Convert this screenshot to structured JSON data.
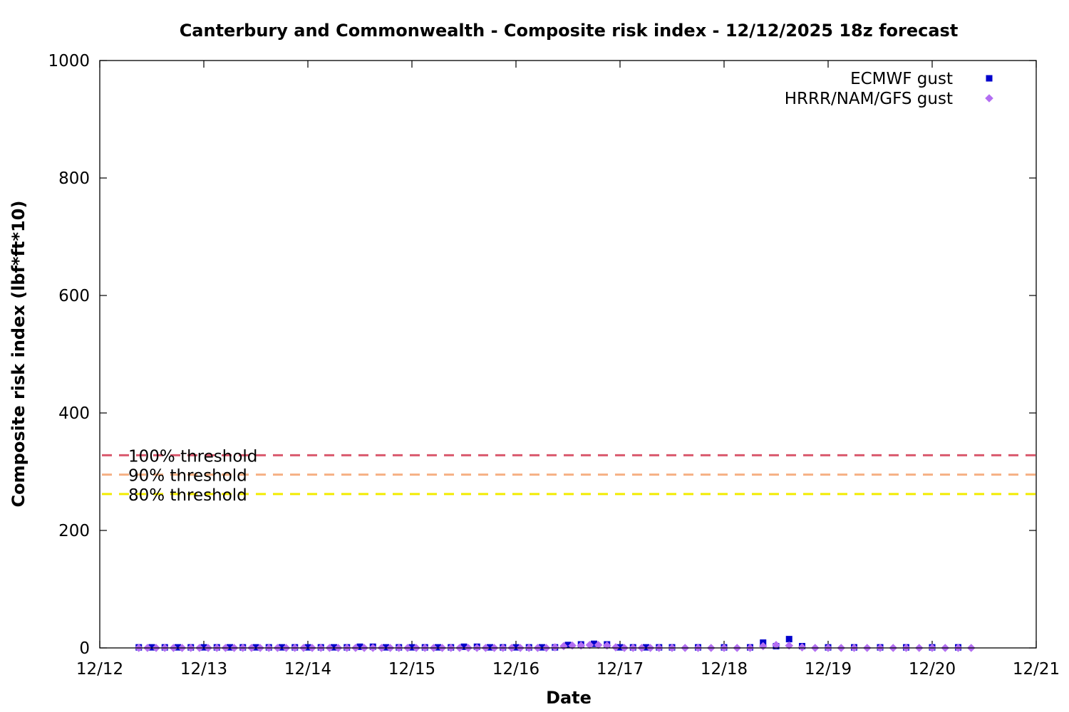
{
  "chart_data": {
    "type": "scatter",
    "title": "Canterbury and Commonwealth - Composite risk index - 12/12/2025 18z forecast",
    "xlabel": "Date",
    "ylabel": "Composite risk index (lbf*ft*10)",
    "x_ticks": [
      "12/12",
      "12/13",
      "12/14",
      "12/15",
      "12/16",
      "12/17",
      "12/18",
      "12/19",
      "12/20",
      "12/21"
    ],
    "y_ticks": [
      "0",
      "200",
      "400",
      "600",
      "800",
      "1000"
    ],
    "xlim": [
      "2025-12-12T00:00",
      "2025-12-21T00:00"
    ],
    "ylim": [
      0,
      1000
    ],
    "grid": false,
    "legend_position": "top-right",
    "thresholds": [
      {
        "label": "100% threshold",
        "value": 328,
        "color": "#d9596d"
      },
      {
        "label": "90% threshold",
        "value": 295,
        "color": "#f6b084"
      },
      {
        "label": "80% threshold",
        "value": 262,
        "color": "#f2ec00"
      }
    ],
    "series": [
      {
        "name": "ECMWF gust",
        "marker": "square",
        "color": "#0000cc",
        "points": [
          [
            "2025-12-12T09:00",
            1
          ],
          [
            "2025-12-12T12:00",
            1
          ],
          [
            "2025-12-12T15:00",
            1
          ],
          [
            "2025-12-12T18:00",
            1
          ],
          [
            "2025-12-12T21:00",
            1
          ],
          [
            "2025-12-13T00:00",
            1
          ],
          [
            "2025-12-13T03:00",
            1
          ],
          [
            "2025-12-13T06:00",
            1
          ],
          [
            "2025-12-13T09:00",
            1
          ],
          [
            "2025-12-13T12:00",
            1
          ],
          [
            "2025-12-13T15:00",
            1
          ],
          [
            "2025-12-13T18:00",
            1
          ],
          [
            "2025-12-13T21:00",
            1
          ],
          [
            "2025-12-14T00:00",
            1
          ],
          [
            "2025-12-14T03:00",
            1
          ],
          [
            "2025-12-14T06:00",
            1
          ],
          [
            "2025-12-14T09:00",
            1
          ],
          [
            "2025-12-14T12:00",
            2
          ],
          [
            "2025-12-14T15:00",
            2
          ],
          [
            "2025-12-14T18:00",
            1
          ],
          [
            "2025-12-14T21:00",
            1
          ],
          [
            "2025-12-15T00:00",
            1
          ],
          [
            "2025-12-15T03:00",
            1
          ],
          [
            "2025-12-15T06:00",
            1
          ],
          [
            "2025-12-15T09:00",
            1
          ],
          [
            "2025-12-15T12:00",
            2
          ],
          [
            "2025-12-15T15:00",
            2
          ],
          [
            "2025-12-15T18:00",
            1
          ],
          [
            "2025-12-15T21:00",
            1
          ],
          [
            "2025-12-16T00:00",
            1
          ],
          [
            "2025-12-16T03:00",
            1
          ],
          [
            "2025-12-16T06:00",
            1
          ],
          [
            "2025-12-16T09:00",
            1
          ],
          [
            "2025-12-16T12:00",
            5
          ],
          [
            "2025-12-16T15:00",
            6
          ],
          [
            "2025-12-16T18:00",
            7
          ],
          [
            "2025-12-16T21:00",
            6
          ],
          [
            "2025-12-17T00:00",
            1
          ],
          [
            "2025-12-17T03:00",
            1
          ],
          [
            "2025-12-17T06:00",
            1
          ],
          [
            "2025-12-17T09:00",
            1
          ],
          [
            "2025-12-17T12:00",
            1
          ],
          [
            "2025-12-17T18:00",
            1
          ],
          [
            "2025-12-18T00:00",
            1
          ],
          [
            "2025-12-18T06:00",
            1
          ],
          [
            "2025-12-18T12:00",
            3
          ],
          [
            "2025-12-18T18:00",
            3
          ],
          [
            "2025-12-19T00:00",
            1
          ],
          [
            "2025-12-19T06:00",
            1
          ],
          [
            "2025-12-19T12:00",
            1
          ],
          [
            "2025-12-19T18:00",
            1
          ],
          [
            "2025-12-20T00:00",
            1
          ],
          [
            "2025-12-20T06:00",
            1
          ],
          [
            "2025-12-18T09:00",
            9
          ],
          [
            "2025-12-18T15:00",
            15
          ]
        ]
      },
      {
        "name": "HRRR/NAM/GFS gust",
        "marker": "diamond",
        "color": "#b36ef2",
        "points": [
          [
            "2025-12-12T09:00",
            0
          ],
          [
            "2025-12-12T11:00",
            0
          ],
          [
            "2025-12-12T13:00",
            0
          ],
          [
            "2025-12-12T15:00",
            0
          ],
          [
            "2025-12-12T17:00",
            0
          ],
          [
            "2025-12-12T19:00",
            0
          ],
          [
            "2025-12-12T21:00",
            0
          ],
          [
            "2025-12-12T23:00",
            0
          ],
          [
            "2025-12-13T01:00",
            0
          ],
          [
            "2025-12-13T03:00",
            0
          ],
          [
            "2025-12-13T05:00",
            0
          ],
          [
            "2025-12-13T07:00",
            0
          ],
          [
            "2025-12-13T09:00",
            0
          ],
          [
            "2025-12-13T11:00",
            0
          ],
          [
            "2025-12-13T13:00",
            0
          ],
          [
            "2025-12-13T15:00",
            0
          ],
          [
            "2025-12-13T17:00",
            0
          ],
          [
            "2025-12-13T19:00",
            0
          ],
          [
            "2025-12-13T21:00",
            0
          ],
          [
            "2025-12-13T23:00",
            0
          ],
          [
            "2025-12-14T01:00",
            0
          ],
          [
            "2025-12-14T03:00",
            0
          ],
          [
            "2025-12-14T05:00",
            0
          ],
          [
            "2025-12-14T07:00",
            0
          ],
          [
            "2025-12-14T09:00",
            0
          ],
          [
            "2025-12-14T11:00",
            0
          ],
          [
            "2025-12-14T13:00",
            0
          ],
          [
            "2025-12-14T15:00",
            0
          ],
          [
            "2025-12-14T17:00",
            0
          ],
          [
            "2025-12-14T19:00",
            0
          ],
          [
            "2025-12-14T21:00",
            0
          ],
          [
            "2025-12-14T23:00",
            0
          ],
          [
            "2025-12-15T01:00",
            0
          ],
          [
            "2025-12-15T03:00",
            0
          ],
          [
            "2025-12-15T05:00",
            0
          ],
          [
            "2025-12-15T07:00",
            0
          ],
          [
            "2025-12-15T09:00",
            0
          ],
          [
            "2025-12-15T11:00",
            0
          ],
          [
            "2025-12-15T13:00",
            0
          ],
          [
            "2025-12-15T15:00",
            0
          ],
          [
            "2025-12-15T17:00",
            0
          ],
          [
            "2025-12-15T19:00",
            0
          ],
          [
            "2025-12-15T21:00",
            0
          ],
          [
            "2025-12-15T23:00",
            0
          ],
          [
            "2025-12-16T01:00",
            0
          ],
          [
            "2025-12-16T03:00",
            0
          ],
          [
            "2025-12-16T05:00",
            0
          ],
          [
            "2025-12-16T07:00",
            0
          ],
          [
            "2025-12-16T09:00",
            1
          ],
          [
            "2025-12-16T11:00",
            3
          ],
          [
            "2025-12-16T13:00",
            4
          ],
          [
            "2025-12-16T15:00",
            4
          ],
          [
            "2025-12-16T17:00",
            5
          ],
          [
            "2025-12-16T19:00",
            5
          ],
          [
            "2025-12-16T21:00",
            4
          ],
          [
            "2025-12-16T23:00",
            1
          ],
          [
            "2025-12-17T01:00",
            0
          ],
          [
            "2025-12-17T03:00",
            0
          ],
          [
            "2025-12-17T05:00",
            0
          ],
          [
            "2025-12-17T07:00",
            0
          ],
          [
            "2025-12-17T09:00",
            0
          ],
          [
            "2025-12-17T12:00",
            0
          ],
          [
            "2025-12-17T15:00",
            0
          ],
          [
            "2025-12-17T18:00",
            0
          ],
          [
            "2025-12-17T21:00",
            0
          ],
          [
            "2025-12-18T00:00",
            0
          ],
          [
            "2025-12-18T03:00",
            0
          ],
          [
            "2025-12-18T06:00",
            0
          ],
          [
            "2025-12-18T09:00",
            3
          ],
          [
            "2025-12-18T12:00",
            5
          ],
          [
            "2025-12-18T15:00",
            4
          ],
          [
            "2025-12-18T18:00",
            1
          ],
          [
            "2025-12-18T21:00",
            0
          ],
          [
            "2025-12-19T00:00",
            0
          ],
          [
            "2025-12-19T03:00",
            0
          ],
          [
            "2025-12-19T06:00",
            0
          ],
          [
            "2025-12-19T09:00",
            0
          ],
          [
            "2025-12-19T12:00",
            0
          ],
          [
            "2025-12-19T15:00",
            0
          ],
          [
            "2025-12-19T18:00",
            0
          ],
          [
            "2025-12-19T21:00",
            0
          ],
          [
            "2025-12-20T00:00",
            0
          ],
          [
            "2025-12-20T03:00",
            0
          ],
          [
            "2025-12-20T06:00",
            0
          ],
          [
            "2025-12-20T09:00",
            0
          ]
        ]
      }
    ]
  }
}
